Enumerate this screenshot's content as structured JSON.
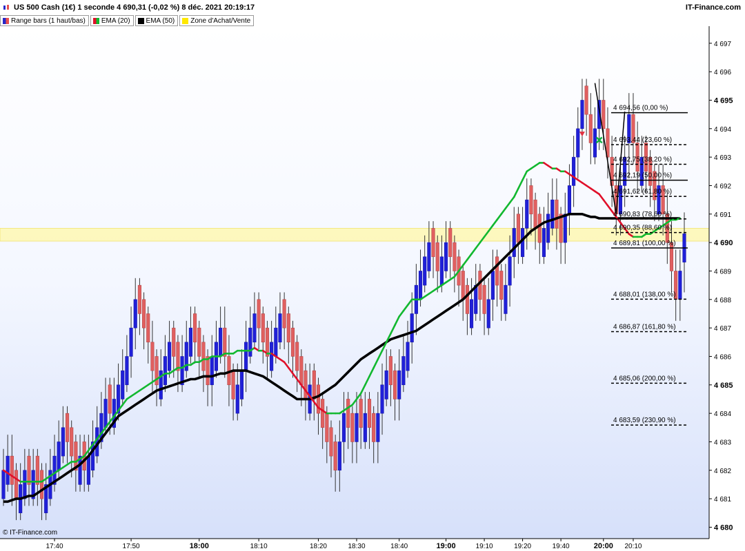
{
  "header": {
    "title": "US 500 Cash (1€) 1 seconde 4 690,31 (-0,02 %) 8 déc. 2021 20:19:17",
    "brand": "IT-Finance.com"
  },
  "legend": [
    {
      "label": "Range bars (1 haut/bas)",
      "swatch": "rb"
    },
    {
      "label": "EMA (20)",
      "swatch": "ema20"
    },
    {
      "label": "EMA (50)",
      "swatch": "ema50"
    },
    {
      "label": "Zone d'Achat/Vente",
      "swatch": "zone"
    }
  ],
  "footer": {
    "copyright": "© IT-Finance.com"
  },
  "colors": {
    "up": "#2020d8",
    "down": "#e06060",
    "ema20_up": "#12b830",
    "ema20_down": "#e0102a",
    "ema50": "#000000",
    "zone": "#ffe800"
  },
  "chart_data": {
    "type": "candlestick",
    "ylim": [
      4679.6,
      4697.6
    ],
    "y_ticks": [
      {
        "v": 4680,
        "label": "4 680",
        "major": true
      },
      {
        "v": 4681,
        "label": "4 681"
      },
      {
        "v": 4682,
        "label": "4 682"
      },
      {
        "v": 4683,
        "label": "4 683"
      },
      {
        "v": 4684,
        "label": "4 684"
      },
      {
        "v": 4685,
        "label": "4 685",
        "major": true
      },
      {
        "v": 4686,
        "label": "4 686"
      },
      {
        "v": 4687,
        "label": "4 687"
      },
      {
        "v": 4688,
        "label": "4 688"
      },
      {
        "v": 4689,
        "label": "4 689"
      },
      {
        "v": 4690,
        "label": "4 690",
        "major": true
      },
      {
        "v": 4691,
        "label": "4 691"
      },
      {
        "v": 4692,
        "label": "4 692"
      },
      {
        "v": 4693,
        "label": "4 693"
      },
      {
        "v": 4694,
        "label": "4 694"
      },
      {
        "v": 4695,
        "label": "4 695",
        "major": true
      },
      {
        "v": 4696,
        "label": "4 696"
      },
      {
        "v": 4697,
        "label": "4 697"
      }
    ],
    "x_ticks": [
      {
        "bar": 12,
        "label": "17:40"
      },
      {
        "bar": 30,
        "label": "17:50"
      },
      {
        "bar": 46,
        "label": "18:00",
        "major": true
      },
      {
        "bar": 60,
        "label": "18:10"
      },
      {
        "bar": 74,
        "label": "18:20"
      },
      {
        "bar": 83,
        "label": "18:30"
      },
      {
        "bar": 93,
        "label": "18:40"
      },
      {
        "bar": 104,
        "label": "19:00",
        "major": true
      },
      {
        "bar": 113,
        "label": "19:10"
      },
      {
        "bar": 122,
        "label": "19:20"
      },
      {
        "bar": 131,
        "label": "19:40"
      },
      {
        "bar": 141,
        "label": "20:00",
        "major": true
      },
      {
        "bar": 148,
        "label": "20:10"
      }
    ],
    "closes": [
      4682.0,
      4682.5,
      4681.5,
      4681.0,
      4681.5,
      4682.0,
      4681.5,
      4682.0,
      4681.5,
      4681.0,
      4681.5,
      4682.0,
      4682.5,
      4683.0,
      4683.5,
      4683.0,
      4682.5,
      4682.0,
      4682.5,
      4682.0,
      4682.5,
      4683.0,
      4683.5,
      4684.0,
      4684.5,
      4684.0,
      4684.5,
      4685.0,
      4685.5,
      4686.0,
      4687.0,
      4688.0,
      4687.5,
      4687.0,
      4686.5,
      4685.5,
      4685.0,
      4685.5,
      4686.0,
      4686.5,
      4686.0,
      4685.5,
      4686.0,
      4686.5,
      4687.0,
      4686.5,
      4686.0,
      4685.5,
      4685.0,
      4686.0,
      4686.5,
      4687.0,
      4686.0,
      4685.0,
      4684.5,
      4685.0,
      4685.5,
      4686.5,
      4687.0,
      4687.5,
      4687.0,
      4686.5,
      4686.0,
      4686.5,
      4687.0,
      4687.5,
      4687.0,
      4686.5,
      4686.0,
      4685.5,
      4685.0,
      4684.5,
      4685.0,
      4684.5,
      4684.0,
      4683.5,
      4683.0,
      4682.5,
      4682.0,
      4683.0,
      4684.0,
      4683.5,
      4683.0,
      4684.0,
      4683.5,
      4684.0,
      4683.5,
      4683.0,
      4684.0,
      4685.0,
      4685.5,
      4685.0,
      4684.5,
      4685.5,
      4686.0,
      4686.5,
      4687.5,
      4688.5,
      4689.0,
      4689.5,
      4690.0,
      4689.5,
      4689.0,
      4689.5,
      4690.0,
      4689.5,
      4689.0,
      4688.5,
      4688.0,
      4687.5,
      4688.0,
      4688.5,
      4688.0,
      4687.5,
      4688.0,
      4689.0,
      4688.5,
      4688.0,
      4688.5,
      4689.5,
      4690.5,
      4690.0,
      4690.5,
      4691.5,
      4691.0,
      4690.5,
      4690.0,
      4690.5,
      4691.0,
      4691.5,
      4690.5,
      4690.0,
      4691.0,
      4692.0,
      4693.0,
      4694.0,
      4695.0,
      4694.5,
      4693.5,
      4694.0,
      4695.0,
      4694.0,
      4693.0,
      4692.0,
      4691.0,
      4692.0,
      4693.0,
      4694.5,
      4693.5,
      4692.5,
      4693.0,
      4692.5,
      4692.0,
      4691.5,
      4692.0,
      4691.0,
      4690.0,
      4689.0,
      4688.0,
      4689.0,
      4690.31
    ],
    "ema20": [
      4682.0,
      4681.9,
      4681.8,
      4681.7,
      4681.6,
      4681.6,
      4681.6,
      4681.6,
      4681.6,
      4681.6,
      4681.7,
      4681.8,
      4681.9,
      4682.0,
      4682.1,
      4682.2,
      4682.3,
      4682.3,
      4682.4,
      4682.5,
      4682.7,
      4682.9,
      4683.1,
      4683.3,
      4683.5,
      4683.7,
      4683.9,
      4684.1,
      4684.3,
      4684.5,
      4684.6,
      4684.7,
      4684.8,
      4684.9,
      4685.0,
      4685.1,
      4685.2,
      4685.3,
      4685.4,
      4685.4,
      4685.5,
      4685.6,
      4685.6,
      4685.7,
      4685.7,
      4685.8,
      4685.8,
      4685.9,
      4685.9,
      4686.0,
      4686.0,
      4686.0,
      4686.1,
      4686.1,
      4686.1,
      4686.2,
      4686.2,
      4686.2,
      4686.2,
      4686.3,
      4686.2,
      4686.2,
      4686.1,
      4686.1,
      4686.0,
      4685.9,
      4685.8,
      4685.6,
      4685.4,
      4685.2,
      4685.0,
      4684.8,
      4684.6,
      4684.4,
      4684.2,
      4684.1,
      4684.0,
      4684.0,
      4684.0,
      4684.0,
      4684.1,
      4684.2,
      4684.3,
      4684.5,
      4684.7,
      4685.0,
      4685.3,
      4685.6,
      4685.9,
      4686.2,
      4686.5,
      4686.8,
      4687.1,
      4687.4,
      4687.6,
      4687.8,
      4688.0,
      4688.0,
      4688.0,
      4688.1,
      4688.2,
      4688.3,
      4688.4,
      4688.5,
      4688.6,
      4688.7,
      4688.8,
      4689.0,
      4689.2,
      4689.4,
      4689.6,
      4689.8,
      4690.0,
      4690.2,
      4690.4,
      4690.6,
      4690.8,
      4691.0,
      4691.2,
      4691.4,
      4691.6,
      4691.9,
      4692.2,
      4692.5,
      4692.6,
      4692.7,
      4692.8,
      4692.8,
      4692.7,
      4692.6,
      4692.6,
      4692.5,
      4692.5,
      4692.4,
      4692.3,
      4692.2,
      4692.1,
      4692.0,
      4691.9,
      4691.8,
      4691.7,
      4691.5,
      4691.3,
      4691.1,
      4690.9,
      4690.7,
      4690.5,
      4690.3,
      4690.2,
      4690.2,
      4690.2,
      4690.3,
      4690.3,
      4690.4,
      4690.5,
      4690.6,
      4690.7,
      4690.8,
      4690.8,
      4690.85
    ],
    "ema50": [
      4680.9,
      4680.9,
      4680.95,
      4681.0,
      4681.0,
      4681.05,
      4681.1,
      4681.1,
      4681.2,
      4681.3,
      4681.4,
      4681.5,
      4681.6,
      4681.7,
      4681.8,
      4681.9,
      4682.0,
      4682.1,
      4682.2,
      4682.35,
      4682.5,
      4682.7,
      4682.9,
      4683.1,
      4683.3,
      4683.5,
      4683.7,
      4683.9,
      4684.0,
      4684.1,
      4684.2,
      4684.3,
      4684.4,
      4684.5,
      4684.6,
      4684.7,
      4684.8,
      4684.85,
      4684.9,
      4684.95,
      4685.0,
      4685.05,
      4685.1,
      4685.15,
      4685.2,
      4685.2,
      4685.25,
      4685.3,
      4685.3,
      4685.3,
      4685.35,
      4685.4,
      4685.4,
      4685.45,
      4685.5,
      4685.5,
      4685.5,
      4685.5,
      4685.45,
      4685.4,
      4685.35,
      4685.3,
      4685.2,
      4685.1,
      4685.0,
      4684.9,
      4684.8,
      4684.7,
      4684.6,
      4684.5,
      4684.5,
      4684.5,
      4684.5,
      4684.55,
      4684.6,
      4684.7,
      4684.8,
      4684.9,
      4685.0,
      4685.15,
      4685.3,
      4685.45,
      4685.6,
      4685.75,
      4685.9,
      4686.0,
      4686.1,
      4686.2,
      4686.3,
      4686.4,
      4686.5,
      4686.6,
      4686.65,
      4686.7,
      4686.75,
      4686.8,
      4686.85,
      4686.9,
      4687.0,
      4687.1,
      4687.2,
      4687.3,
      4687.4,
      4687.5,
      4687.6,
      4687.7,
      4687.8,
      4687.9,
      4688.0,
      4688.15,
      4688.3,
      4688.45,
      4688.6,
      4688.75,
      4688.9,
      4689.05,
      4689.2,
      4689.35,
      4689.5,
      4689.65,
      4689.8,
      4689.95,
      4690.1,
      4690.25,
      4690.4,
      4690.5,
      4690.6,
      4690.7,
      4690.75,
      4690.8,
      4690.85,
      4690.9,
      4690.95,
      4691.0,
      4691.0,
      4691.0,
      4691.0,
      4690.95,
      4690.9,
      4690.9,
      4690.85,
      4690.85,
      4690.85,
      4690.85,
      4690.85,
      4690.85,
      4690.85,
      4690.85,
      4690.85,
      4690.85,
      4690.85,
      4690.85,
      4690.85,
      4690.85,
      4690.85,
      4690.85,
      4690.85,
      4690.85,
      4690.85,
      4690.85
    ],
    "zone": {
      "low": 4690.05,
      "high": 4690.5
    },
    "fibonacci": [
      {
        "price": 4694.56,
        "label": "4 694,56 (0,00 %)"
      },
      {
        "price": 4693.44,
        "label": "4 693,44 (23,60 %)"
      },
      {
        "price": 4692.75,
        "label": "4 692,75 (38,20 %)"
      },
      {
        "price": 4692.19,
        "label": "4 692,19 (50,00 %)"
      },
      {
        "price": 4691.62,
        "label": "4 691,62 (61,80 %)"
      },
      {
        "price": 4690.83,
        "label": "4 690,83 (78,60 %)"
      },
      {
        "price": 4690.35,
        "label": "4 690,35 (88,60 %)"
      },
      {
        "price": 4689.81,
        "label": "4 689,81 (100,00 %)"
      },
      {
        "price": 4688.01,
        "label": "4 688,01 (138,00 %)"
      },
      {
        "price": 4686.87,
        "label": "4 686,87 (161,80 %)"
      },
      {
        "price": 4685.06,
        "label": "4 685,06 (200,00 %)"
      },
      {
        "price": 4683.59,
        "label": "4 683,59 (230,90 %)"
      }
    ],
    "swing_points": [
      {
        "bar": 139,
        "price": 4695.6
      },
      {
        "bar": 144,
        "price": 4691.0
      },
      {
        "bar": 146,
        "price": 4694.6
      }
    ],
    "markers": [
      {
        "bar": 136,
        "price": 4693.8,
        "kind": "sell-arrow"
      },
      {
        "bar": 140,
        "price": 4693.6,
        "kind": "buy-cross"
      }
    ]
  }
}
